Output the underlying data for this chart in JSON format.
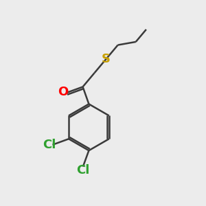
{
  "bg_color": "#ececec",
  "bond_color": "#3a3a3a",
  "O_color": "#ff0000",
  "S_color": "#c8a000",
  "Cl_color": "#2ea02e",
  "bond_width": 1.8,
  "font_size": 13,
  "fig_size": [
    3.0,
    3.0
  ],
  "dpi": 100,
  "xlim": [
    0,
    10
  ],
  "ylim": [
    0,
    10
  ]
}
